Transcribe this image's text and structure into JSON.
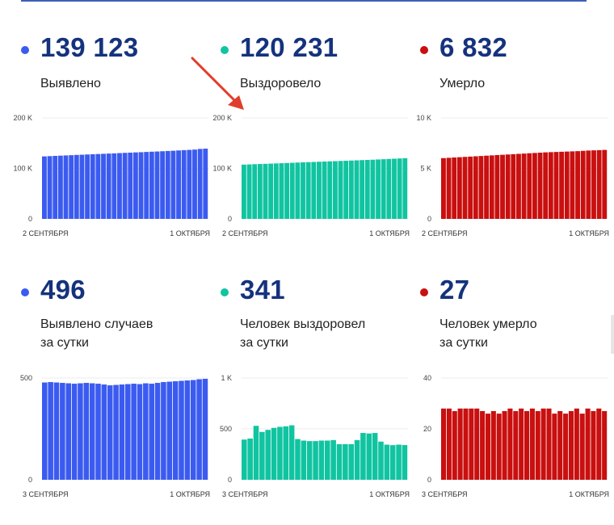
{
  "colors": {
    "blue": "#3b5bf0",
    "teal": "#11c4a1",
    "red": "#c90f0f",
    "number": "#15327d",
    "arrow": "#e03e2d"
  },
  "cards": [
    {
      "value": "139 123",
      "label_lines": [
        "Выявлено"
      ],
      "color": "blue",
      "chart_data": {
        "type": "bar",
        "y_ticks": [
          "200 K",
          "100 K",
          "0"
        ],
        "ylim": [
          0,
          200000
        ],
        "x_start": "2 СЕНТЯБРЯ",
        "x_end": "1 ОКТЯБРЯ",
        "values": [
          123800,
          124300,
          124800,
          125300,
          125700,
          126200,
          126700,
          127100,
          127600,
          128000,
          128500,
          128900,
          129400,
          129800,
          130300,
          130800,
          131200,
          131700,
          132100,
          132600,
          133100,
          133500,
          134000,
          134500,
          135000,
          135600,
          136200,
          136700,
          137300,
          138600,
          139123
        ]
      }
    },
    {
      "value": "120 231",
      "label_lines": [
        "Выздоровело"
      ],
      "color": "teal",
      "chart_data": {
        "type": "bar",
        "y_ticks": [
          "200 K",
          "100 K",
          "0"
        ],
        "ylim": [
          0,
          200000
        ],
        "x_start": "2 СЕНТЯБРЯ",
        "x_end": "1 ОКТЯБРЯ",
        "values": [
          107500,
          107900,
          108300,
          108700,
          109100,
          109500,
          109900,
          110300,
          110700,
          111100,
          111600,
          112000,
          112400,
          112800,
          113200,
          113600,
          114000,
          114400,
          114800,
          115200,
          115600,
          116000,
          116400,
          116800,
          117200,
          117700,
          118200,
          118700,
          119200,
          119700,
          120231
        ]
      }
    },
    {
      "value": "6 832",
      "label_lines": [
        "Умерло"
      ],
      "color": "red",
      "chart_data": {
        "type": "bar",
        "y_ticks": [
          "10 K",
          "5 K",
          "0"
        ],
        "ylim": [
          0,
          10000
        ],
        "x_start": "2 СЕНТЯБРЯ",
        "x_end": "1 ОКТЯБРЯ",
        "values": [
          6020,
          6050,
          6080,
          6110,
          6140,
          6170,
          6200,
          6230,
          6260,
          6290,
          6320,
          6350,
          6380,
          6410,
          6440,
          6470,
          6500,
          6530,
          6560,
          6590,
          6610,
          6630,
          6650,
          6670,
          6690,
          6710,
          6740,
          6770,
          6790,
          6810,
          6832
        ]
      }
    },
    {
      "value": "496",
      "label_lines": [
        "Выявлено случаев",
        "за сутки"
      ],
      "color": "blue",
      "chart_data": {
        "type": "bar",
        "y_ticks": [
          "500",
          "0"
        ],
        "ylim": [
          0,
          500
        ],
        "x_start": "3 СЕНТЯБРЯ",
        "x_end": "1 ОКТЯБРЯ",
        "values": [
          478,
          480,
          478,
          476,
          474,
          472,
          474,
          476,
          474,
          472,
          468,
          464,
          466,
          468,
          470,
          472,
          470,
          474,
          472,
          476,
          480,
          482,
          484,
          486,
          488,
          490,
          494,
          496
        ]
      }
    },
    {
      "value": "341",
      "label_lines": [
        "Человек выздоровел",
        "за сутки"
      ],
      "color": "teal",
      "chart_data": {
        "type": "bar",
        "y_ticks": [
          "1 K",
          "500",
          "0"
        ],
        "ylim": [
          0,
          1000
        ],
        "x_start": "3 СЕНТЯБРЯ",
        "x_end": "1 ОКТЯБРЯ",
        "values": [
          395,
          405,
          530,
          470,
          490,
          510,
          520,
          525,
          535,
          400,
          385,
          380,
          380,
          385,
          385,
          390,
          350,
          350,
          350,
          390,
          460,
          455,
          460,
          375,
          345,
          340,
          345,
          341
        ]
      }
    },
    {
      "value": "27",
      "label_lines": [
        "Человек умерло",
        "за сутки"
      ],
      "color": "red",
      "chart_data": {
        "type": "bar",
        "y_ticks": [
          "40",
          "20",
          "0"
        ],
        "ylim": [
          0,
          40
        ],
        "x_start": "3 СЕНТЯБРЯ",
        "x_end": "1 ОКТЯБРЯ",
        "values": [
          28,
          28,
          27,
          28,
          28,
          28,
          28,
          27,
          26,
          27,
          26,
          27,
          28,
          27,
          28,
          27,
          28,
          27,
          28,
          28,
          26,
          27,
          26,
          27,
          28,
          26,
          28,
          27,
          28,
          27
        ]
      }
    }
  ]
}
